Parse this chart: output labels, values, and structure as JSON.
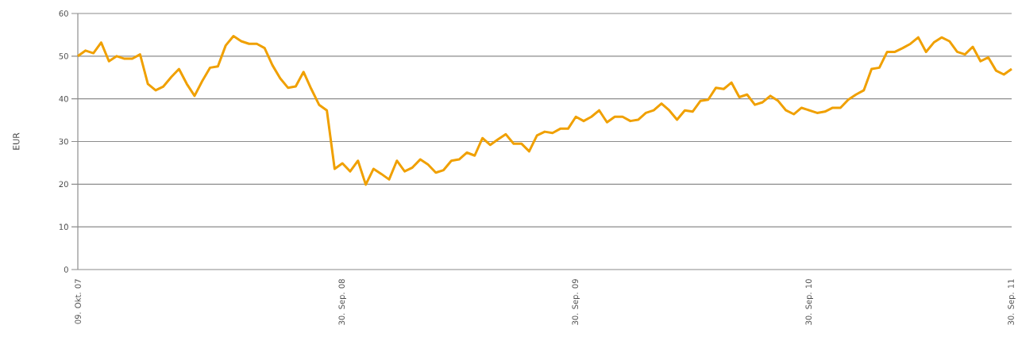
{
  "chart_data": {
    "type": "line",
    "ylabel": "EUR",
    "categories": [
      "09. Okt. 07",
      null,
      null,
      null,
      null,
      null,
      null,
      null,
      null,
      null,
      null,
      null,
      null,
      null,
      null,
      null,
      null,
      null,
      null,
      null,
      null,
      null,
      null,
      null,
      null,
      null,
      null,
      null,
      null,
      null,
      null,
      null,
      null,
      null,
      "30. Sep. 08",
      null,
      null,
      null,
      null,
      null,
      null,
      null,
      null,
      null,
      null,
      null,
      null,
      null,
      null,
      null,
      null,
      null,
      null,
      null,
      null,
      null,
      null,
      null,
      null,
      null,
      null,
      null,
      null,
      null,
      "30. Sep. 09",
      null,
      null,
      null,
      null,
      null,
      null,
      null,
      null,
      null,
      null,
      null,
      null,
      null,
      null,
      null,
      null,
      null,
      null,
      null,
      null,
      null,
      null,
      null,
      null,
      null,
      null,
      null,
      null,
      null,
      "30. Sep. 10",
      null,
      null,
      null,
      null,
      null,
      null,
      null,
      null,
      null,
      null,
      null,
      null,
      null,
      null,
      null,
      null,
      null,
      null,
      null,
      null,
      null,
      null,
      null,
      null,
      null,
      "30. Sep. 11"
    ],
    "values": [
      50,
      51.3,
      50.7,
      53.2,
      48.8,
      50,
      49.4,
      49.4,
      50.4,
      43.5,
      42,
      42.9,
      45.1,
      47,
      43.5,
      40.7,
      44.2,
      47.3,
      47.6,
      52.5,
      54.7,
      53.5,
      52.9,
      52.9,
      51.9,
      47.9,
      44.8,
      42.6,
      42.9,
      46.3,
      42.3,
      38.6,
      37.3,
      23.6,
      24.9,
      23,
      25.5,
      19.9,
      23.6,
      22.4,
      21.1,
      25.5,
      23,
      23.9,
      25.8,
      24.6,
      22.7,
      23.3,
      25.5,
      25.8,
      27.4,
      26.7,
      30.8,
      29.2,
      30.5,
      31.7,
      29.5,
      29.5,
      27.7,
      31.4,
      32.3,
      32,
      33,
      33,
      35.8,
      34.8,
      35.8,
      37.3,
      34.5,
      35.8,
      35.8,
      34.8,
      35.1,
      36.7,
      37.3,
      38.9,
      37.3,
      35.1,
      37.3,
      37,
      39.5,
      39.8,
      42.6,
      42.3,
      43.8,
      40.4,
      41,
      38.6,
      39.2,
      40.7,
      39.5,
      37.3,
      36.4,
      37.9,
      37.3,
      36.7,
      37,
      37.9,
      37.9,
      39.8,
      41,
      42,
      47,
      47.3,
      51,
      51,
      51.9,
      52.9,
      54.4,
      51,
      53.2,
      54.4,
      53.5,
      51,
      50.4,
      52.2,
      48.8,
      49.7,
      46.6,
      45.7,
      47
    ],
    "color": "#f0a000",
    "ylim": [
      0,
      60
    ],
    "yticks": [
      0,
      10,
      20,
      30,
      40,
      50,
      60
    ],
    "grid": "y",
    "marker": "none"
  }
}
